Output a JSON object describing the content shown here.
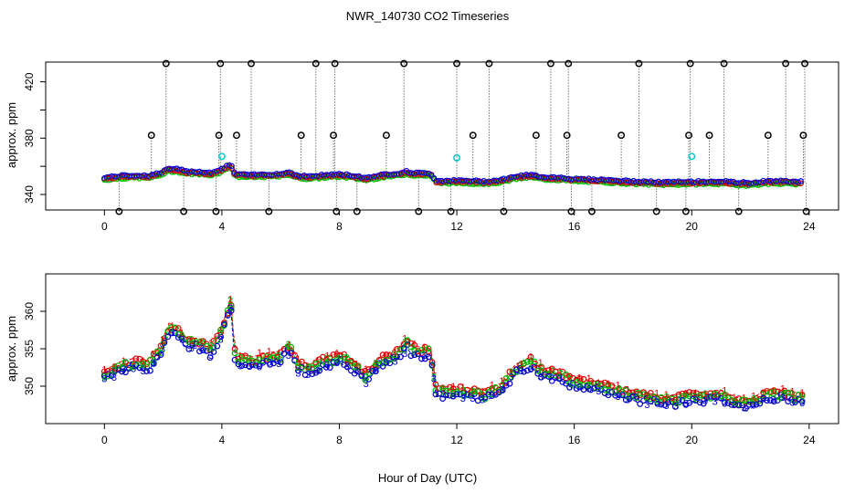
{
  "title": "NWR_140730  CO2 Timeseries",
  "xlabel": "Hour of Day (UTC)",
  "chart_data": [
    {
      "type": "scatter",
      "name": "top-panel",
      "ylabel": "approx. ppm",
      "xlim": [
        -2,
        25
      ],
      "ylim": [
        329,
        434
      ],
      "xticks": [
        0,
        4,
        8,
        12,
        16,
        20,
        24
      ],
      "yticks": [
        340,
        360,
        380,
        400,
        420
      ],
      "ytick_labels": [
        "340",
        "",
        "380",
        "",
        "420"
      ],
      "series": [
        {
          "name": "raw-high",
          "color": "#000000",
          "x": [
            1.6,
            2.1,
            3.9,
            3.95,
            4.5,
            5.0,
            6.7,
            7.2,
            7.8,
            7.85,
            9.6,
            10.2,
            12.0,
            12.55,
            13.1,
            14.7,
            15.2,
            15.75,
            15.8,
            17.6,
            18.2,
            19.9,
            19.95,
            20.6,
            21.1,
            22.6,
            23.2,
            23.8,
            23.85
          ],
          "y": [
            382,
            433,
            382,
            433,
            382,
            433,
            382,
            433,
            382,
            433,
            382,
            433,
            433,
            382,
            433,
            382,
            433,
            382,
            433,
            382,
            433,
            382,
            433,
            382,
            433,
            382,
            433,
            382,
            433
          ]
        },
        {
          "name": "raw-low",
          "color": "#000000",
          "x": [
            0.5,
            2.7,
            3.8,
            5.6,
            7.9,
            8.6,
            10.7,
            11.8,
            13.6,
            15.9,
            16.6,
            18.8,
            19.8,
            21.6,
            23.9
          ],
          "y": [
            328,
            328,
            328,
            328,
            328,
            328,
            328,
            328,
            328,
            328,
            328,
            328,
            328,
            328,
            328
          ]
        },
        {
          "name": "cyan-flags",
          "color": "#00cccc",
          "x": [
            4.0,
            12.0,
            20.0
          ],
          "y": [
            367,
            366,
            367
          ]
        }
      ]
    },
    {
      "type": "line",
      "name": "bottom-panel",
      "ylabel": "approx. ppm",
      "xlim": [
        -2,
        25
      ],
      "ylim": [
        345,
        365
      ],
      "xticks": [
        0,
        4,
        8,
        12,
        16,
        20,
        24
      ],
      "yticks": [
        350,
        355,
        360
      ],
      "keypoints_x": [
        0,
        0.5,
        1.0,
        1.5,
        1.9,
        2.2,
        2.5,
        2.8,
        3.2,
        3.6,
        4.0,
        4.3,
        4.45,
        4.6,
        5.0,
        5.5,
        6.0,
        6.3,
        6.6,
        7.0,
        7.5,
        8.0,
        8.4,
        8.9,
        9.4,
        10.0,
        10.3,
        10.5,
        10.9,
        11.1,
        11.3,
        11.5,
        12.0,
        12.5,
        13.0,
        13.5,
        14.0,
        14.5,
        15.0,
        15.5,
        16.0,
        17.0,
        18.0,
        19.0,
        20.0,
        21.0,
        21.5,
        22.0,
        22.5,
        23.0,
        23.5,
        23.8
      ],
      "keypoints_y": [
        351.2,
        352.3,
        352.8,
        352.5,
        354.5,
        357.5,
        357.0,
        355.5,
        355.5,
        354.5,
        357.0,
        361.0,
        353.5,
        353.5,
        353.0,
        353.5,
        353.8,
        355.0,
        352.5,
        352.0,
        353.0,
        353.5,
        352.8,
        351.0,
        353.0,
        354.2,
        355.5,
        354.5,
        354.2,
        354.5,
        349.0,
        349.0,
        349.0,
        348.8,
        348.5,
        349.5,
        352.0,
        353.0,
        351.5,
        351.3,
        350.2,
        349.6,
        348.5,
        347.8,
        348.2,
        348.6,
        347.6,
        347.4,
        348.5,
        348.7,
        348.3,
        348.2
      ],
      "series": [
        {
          "name": "1",
          "color": "#dd0000",
          "offset": 0.9
        },
        {
          "name": "2",
          "color": "#00bb00",
          "offset": 0.4
        },
        {
          "name": "3",
          "color": "#0000cc",
          "offset": -0.4
        }
      ]
    }
  ]
}
